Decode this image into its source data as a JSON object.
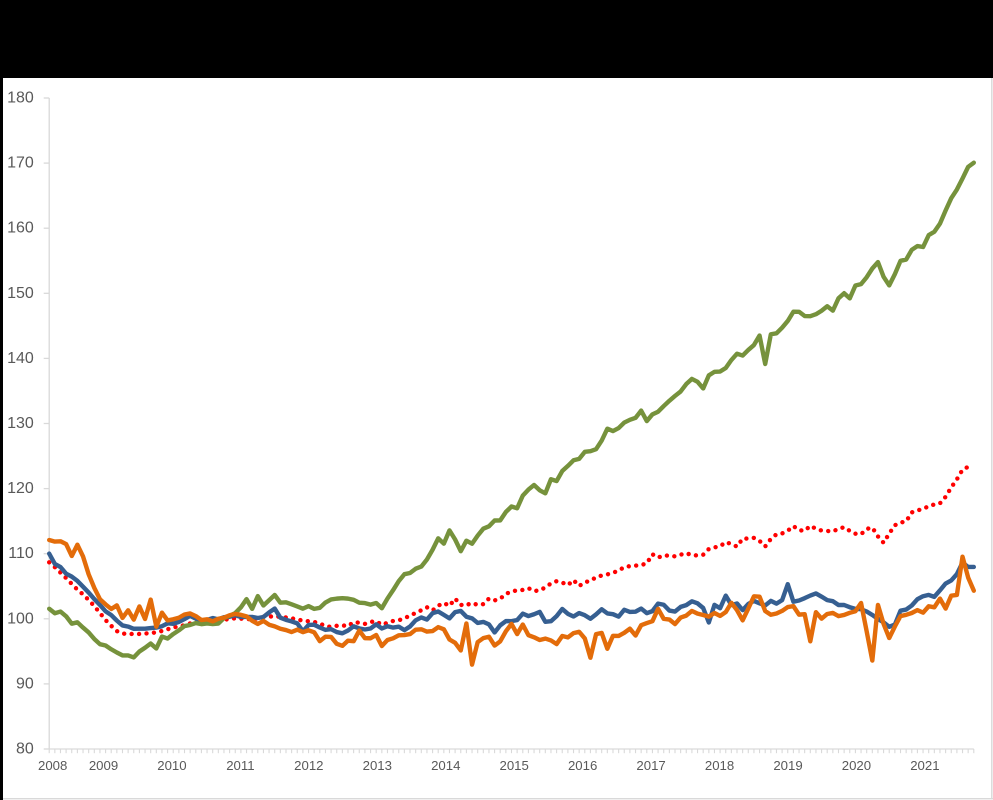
{
  "chart_data": {
    "type": "line",
    "x_start": "2008-01",
    "x_end": "2021-09",
    "frequency": "monthly",
    "title": "",
    "xlabel": "",
    "ylabel": "",
    "ylim": [
      80,
      180
    ],
    "ytick_interval": 10,
    "ytick_labels": [
      "80",
      "90",
      "100",
      "110",
      "120",
      "130",
      "140",
      "150",
      "160",
      "170",
      "180"
    ],
    "xtick_labels": [
      "2008",
      "2009",
      "2010",
      "2011",
      "2012",
      "2013",
      "2014",
      "2015",
      "2016",
      "2017",
      "2018",
      "2019",
      "2020",
      "2021"
    ],
    "grid": false,
    "legend": "none",
    "series": [
      {
        "name": "red-dotted",
        "style": "dotted",
        "color": "#FF0000",
        "values": [
          108.67,
          107.93,
          107.1,
          106.25,
          105.36,
          104.48,
          103.75,
          102.89,
          101.95,
          100.9,
          99.81,
          98.92,
          98.11,
          97.75,
          97.64,
          97.69,
          97.67,
          97.75,
          97.78,
          97.94,
          98.13,
          98.39,
          98.7,
          98.79,
          99.03,
          99.29,
          99.55,
          99.49,
          99.4,
          99.51,
          99.67,
          99.79,
          100.05,
          100.05,
          100.03,
          99.91,
          100.02,
          100.08,
          100.31,
          100.32,
          100.43,
          100.29,
          100.21,
          100.08,
          99.87,
          99.74,
          99.62,
          99.52,
          99.28,
          98.87,
          98.76,
          98.93,
          98.99,
          98.88,
          99.48,
          99.41,
          99.22,
          99.52,
          99.63,
          99.08,
          99.39,
          99.67,
          99.76,
          100.1,
          100.47,
          100.91,
          101.31,
          101.77,
          101.3,
          102.01,
          102.43,
          101.98,
          103.11,
          102.1,
          102.35,
          102.05,
          102.34,
          102.24,
          103.11,
          102.83,
          103.07,
          103.85,
          104.15,
          104.4,
          104.43,
          104.7,
          104.27,
          104.36,
          104.82,
          105.43,
          105.78,
          105.57,
          105.17,
          105.95,
          105.04,
          105.61,
          105.84,
          106.38,
          106.65,
          106.82,
          107.06,
          107.42,
          107.93,
          108.09,
          108.17,
          108.25,
          108.52,
          109.91,
          109.41,
          109.74,
          109.68,
          109.59,
          109.85,
          110.08,
          109.78,
          109.73,
          109.84,
          110.72,
          110.97,
          111.13,
          111.78,
          111.48,
          111.09,
          112.32,
          112.32,
          112.43,
          111.97,
          111.11,
          112.27,
          112.98,
          113.11,
          113.52,
          114.24,
          113.62,
          113.51,
          114.28,
          113.84,
          113.55,
          113.49,
          113.44,
          113.8,
          114.08,
          113.51,
          113.07,
          112.99,
          113.8,
          114.02,
          112.65,
          111.68,
          113.1,
          114.37,
          114.78,
          114.96,
          116.35,
          116.59,
          117.0,
          117.2,
          117.59,
          117.74,
          118.74,
          120.19,
          121.42,
          122.91,
          123.34
        ]
      },
      {
        "name": "blue-solid",
        "style": "solid",
        "color": "#365F91",
        "values": [
          110.01,
          108.43,
          107.95,
          106.93,
          106.48,
          105.82,
          104.93,
          104.03,
          103.03,
          102.13,
          101.15,
          100.57,
          99.72,
          98.98,
          98.8,
          98.47,
          98.48,
          98.48,
          98.57,
          98.65,
          98.86,
          99.3,
          99.24,
          99.53,
          99.96,
          100.45,
          100.03,
          99.56,
          99.82,
          100.11,
          99.91,
          100.25,
          100.31,
          100.56,
          100.28,
          100.29,
          100.29,
          100.12,
          100.28,
          100.97,
          101.57,
          100.17,
          99.84,
          99.6,
          99.3,
          98.08,
          99.05,
          99.09,
          98.66,
          98.3,
          98.4,
          97.96,
          97.77,
          98.2,
          98.85,
          98.52,
          98.36,
          98.51,
          99.15,
          98.51,
          98.86,
          98.65,
          98.79,
          98.26,
          98.82,
          99.77,
          100.21,
          99.88,
          100.87,
          101.12,
          100.6,
          100.07,
          101.02,
          101.21,
          100.32,
          100.07,
          99.37,
          99.52,
          99.14,
          97.9,
          99.0,
          99.65,
          99.64,
          99.81,
          100.79,
          100.42,
          100.7,
          101.06,
          99.54,
          99.63,
          100.41,
          101.51,
          100.76,
          100.36,
          100.88,
          100.55,
          100.01,
          100.68,
          101.47,
          100.83,
          100.71,
          100.33,
          101.39,
          101.06,
          101.1,
          101.57,
          100.87,
          101.18,
          102.33,
          102.16,
          101.27,
          101.11,
          101.83,
          102.1,
          102.69,
          102.37,
          101.66,
          99.43,
          102.14,
          101.62,
          103.56,
          102.11,
          102.36,
          101.33,
          102.28,
          102.74,
          102.38,
          102.05,
          102.75,
          102.33,
          102.86,
          105.32,
          102.63,
          102.81,
          103.17,
          103.57,
          103.9,
          103.4,
          102.87,
          102.71,
          102.12,
          102.12,
          101.78,
          101.52,
          101.47,
          101.12,
          100.59,
          99.98,
          99.46,
          98.77,
          99.12,
          101.25,
          101.42,
          102.04,
          103.01,
          103.47,
          103.67,
          103.37,
          104.37,
          105.42,
          105.89,
          106.86,
          108.64,
          107.96,
          107.96
        ]
      },
      {
        "name": "green-solid",
        "style": "solid",
        "color": "#76923C",
        "values": [
          101.54,
          100.85,
          101.11,
          100.39,
          99.25,
          99.46,
          98.65,
          97.9,
          96.9,
          96.1,
          95.9,
          95.32,
          94.82,
          94.38,
          94.37,
          94.07,
          94.98,
          95.55,
          96.2,
          95.44,
          97.27,
          96.97,
          97.66,
          98.23,
          98.89,
          99.05,
          99.35,
          99.18,
          99.28,
          99.19,
          99.27,
          100.11,
          100.47,
          100.88,
          101.76,
          103.02,
          101.53,
          103.49,
          102.05,
          102.85,
          103.66,
          102.47,
          102.53,
          102.22,
          101.9,
          101.56,
          101.95,
          101.52,
          101.69,
          102.5,
          102.98,
          103.1,
          103.17,
          103.1,
          102.92,
          102.48,
          102.41,
          102.17,
          102.42,
          101.62,
          103.11,
          104.4,
          105.79,
          106.85,
          107.04,
          107.69,
          108.02,
          109.11,
          110.61,
          112.36,
          111.54,
          113.58,
          112.18,
          110.38,
          112.0,
          111.53,
          112.78,
          113.84,
          114.21,
          115.1,
          115.12,
          116.41,
          117.25,
          116.98,
          118.92,
          119.85,
          120.55,
          119.74,
          119.28,
          121.44,
          121.16,
          122.7,
          123.49,
          124.35,
          124.57,
          125.65,
          125.74,
          126.05,
          127.38,
          129.2,
          128.84,
          129.3,
          130.14,
          130.57,
          130.87,
          131.98,
          130.37,
          131.41,
          131.81,
          132.68,
          133.49,
          134.23,
          134.92,
          136.06,
          136.85,
          136.4,
          135.38,
          137.39,
          137.94,
          137.98,
          138.52,
          139.75,
          140.72,
          140.44,
          141.3,
          142.05,
          143.51,
          139.14,
          143.71,
          143.86,
          144.72,
          145.75,
          147.17,
          147.16,
          146.51,
          146.49,
          146.79,
          147.32,
          148.01,
          147.34,
          149.23,
          150.01,
          149.22,
          151.2,
          151.41,
          152.47,
          153.81,
          154.79,
          152.53,
          151.22,
          152.95,
          154.99,
          155.18,
          156.68,
          157.26,
          157.11,
          158.93,
          159.46,
          160.71,
          162.71,
          164.61,
          165.94,
          167.64,
          169.42,
          170.06
        ]
      },
      {
        "name": "orange-solid",
        "style": "solid",
        "color": "#E36C0A",
        "values": [
          112.1,
          111.86,
          111.91,
          111.48,
          109.65,
          111.38,
          109.58,
          106.83,
          104.75,
          103.01,
          102.21,
          101.51,
          102.06,
          100.14,
          101.31,
          99.87,
          101.9,
          99.97,
          102.95,
          98.79,
          100.94,
          99.75,
          99.93,
          100.16,
          100.66,
          100.82,
          100.42,
          99.81,
          99.93,
          99.61,
          100.01,
          100.18,
          100.54,
          100.74,
          100.61,
          100.38,
          99.69,
          99.22,
          99.68,
          99.09,
          98.84,
          98.47,
          98.27,
          97.97,
          98.33,
          97.95,
          98.24,
          97.93,
          96.56,
          97.25,
          97.22,
          96.16,
          95.85,
          96.64,
          96.56,
          98.19,
          97.03,
          97.01,
          97.51,
          95.82,
          96.74,
          97.0,
          97.47,
          97.5,
          97.65,
          98.33,
          98.39,
          98.03,
          98.12,
          98.72,
          98.38,
          96.82,
          96.31,
          95.14,
          99.28,
          92.96,
          96.42,
          97.03,
          97.25,
          95.89,
          96.54,
          98.08,
          99.22,
          97.65,
          99.12,
          97.49,
          97.16,
          96.74,
          96.96,
          96.68,
          96.12,
          97.36,
          97.14,
          97.8,
          98.0,
          96.99,
          94.02,
          97.65,
          97.83,
          95.4,
          97.39,
          97.37,
          97.85,
          98.48,
          97.43,
          99.02,
          99.34,
          99.63,
          101.53,
          99.99,
          99.89,
          99.19,
          100.19,
          100.49,
          101.21,
          100.79,
          100.58,
          100.33,
          100.89,
          100.44,
          101.03,
          102.46,
          101.33,
          99.76,
          101.58,
          103.45,
          103.4,
          101.19,
          100.62,
          100.82,
          101.21,
          101.8,
          101.95,
          100.64,
          100.71,
          96.54,
          101.02,
          100.02,
          100.74,
          100.9,
          100.41,
          100.59,
          100.92,
          101.16,
          102.43,
          98.06,
          93.58,
          102.13,
          99.22,
          97.05,
          98.82,
          100.41,
          100.61,
          100.89,
          101.34,
          100.94,
          101.93,
          101.76,
          103.1,
          101.57,
          103.55,
          103.66,
          109.54,
          106.33,
          104.32
        ]
      }
    ]
  },
  "colors": {
    "canvas_background": "#000000",
    "chart_background": "#FFFFFF",
    "axis_line": "#D9D9D9",
    "tick_mark": "#D9D9D9",
    "tick_label": "#595959",
    "chart_border": "#D9D9D9"
  }
}
